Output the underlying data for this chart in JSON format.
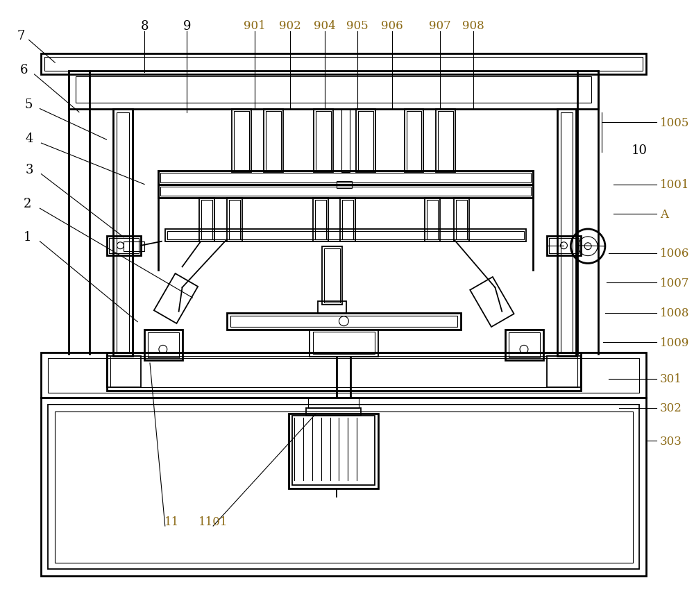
{
  "bg_color": "#ffffff",
  "lc": "#000000",
  "oc": "#8B6914",
  "figsize": [
    10.0,
    8.7
  ],
  "dpi": 100
}
